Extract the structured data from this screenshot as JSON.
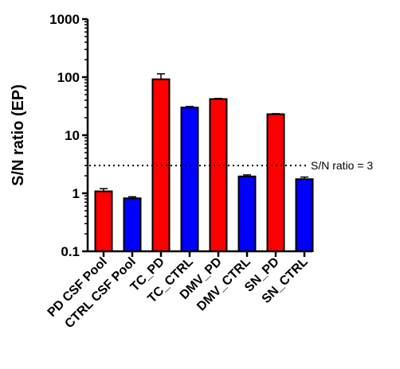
{
  "chart_data": {
    "type": "bar",
    "title": "",
    "ylabel": "S/N ratio (EP)",
    "xlabel": "",
    "yscale": "log",
    "ylim": [
      0.1,
      1000
    ],
    "yticks": [
      "0.1",
      "1",
      "10",
      "100",
      "1000"
    ],
    "categories": [
      "PD CSF Pool",
      "CTRL CSF Pool",
      "TC_PD",
      "TC_CTRL",
      "DMV_PD",
      "DMV_CTRL",
      "SN_PD",
      "SN_CTRL"
    ],
    "values": [
      1.08,
      0.82,
      92,
      30,
      42,
      1.95,
      23,
      1.75
    ],
    "errors": [
      0.12,
      0.05,
      22,
      1.2,
      1.0,
      0.12,
      0.5,
      0.15
    ],
    "bar_colors": [
      "#ff0000",
      "#0000ff",
      "#ff0000",
      "#0000ff",
      "#ff0000",
      "#0000ff",
      "#ff0000",
      "#0000ff"
    ],
    "reference_line": {
      "value": 3,
      "label": "S/N ratio = 3",
      "style": "dotted"
    },
    "grid": false,
    "legend": "none"
  }
}
